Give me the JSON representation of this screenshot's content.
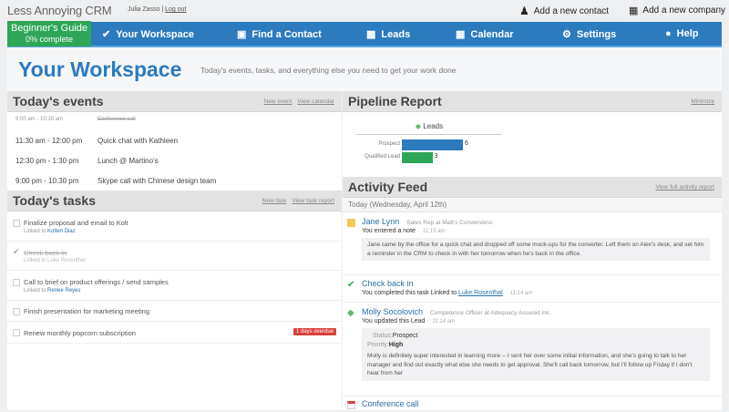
{
  "app": {
    "logo": "Less Annoying CRM",
    "user": "Julia Zasso",
    "logout": "Log out",
    "add_contact": "Add a new contact",
    "add_company": "Add a new company"
  },
  "nav": {
    "guide_title": "Beginner's Guide",
    "guide_progress": "0% complete",
    "items": [
      {
        "label": "Your Workspace",
        "icon": "check-badge-icon"
      },
      {
        "label": "Find a Contact",
        "icon": "contact-card-icon"
      },
      {
        "label": "Leads",
        "icon": "bar-chart-icon"
      },
      {
        "label": "Calendar",
        "icon": "calendar-icon"
      },
      {
        "label": "Settings",
        "icon": "gear-icon"
      },
      {
        "label": "Help",
        "icon": "speech-bubble-icon"
      }
    ]
  },
  "header": {
    "title": "Your Workspace",
    "subtitle": "Today's events, tasks, and everything else you need to get your work done"
  },
  "events": {
    "title": "Today's events",
    "new": "New event",
    "view": "View calendar",
    "items": [
      {
        "time": "9:00 am - 10:30 am",
        "name": "Conference call",
        "done": true
      },
      {
        "time": "11:30 am - 12:00 pm",
        "name": "Quick chat with Kathleen"
      },
      {
        "time": "12:30 pm - 1:30 pm",
        "name": "Lunch @ Martino's"
      },
      {
        "time": "9:00 pm - 10:30 pm",
        "name": "Skype call with Chinese design team"
      }
    ]
  },
  "tasks": {
    "title": "Today's tasks",
    "new": "New task",
    "view": "View task report",
    "linked_prefix": "Linked to",
    "items": [
      {
        "name": "Finalize proposal and email to Kolt",
        "linked": "Kolten Diaz"
      },
      {
        "name": "Check back in",
        "linked": "Luke Rosenthal",
        "done": true
      },
      {
        "name": "Call to brief on product offerings / send samples",
        "linked": "Renee Reyes"
      },
      {
        "name": "Finish presentation for marketing meeting"
      },
      {
        "name": "Renew monthly popcorn subscription",
        "badge": "1 days overdue"
      }
    ]
  },
  "pipeline": {
    "title": "Pipeline Report",
    "minimize": "Minimize",
    "chart_title": "Leads",
    "bars": [
      {
        "label": "Prospect",
        "value": 6,
        "color": "#2c7bbf"
      },
      {
        "label": "Qualified Lead",
        "value": 3,
        "color": "#2ea657"
      }
    ]
  },
  "activity": {
    "title": "Activity Feed",
    "view": "View full activity report",
    "date": "Today (Wednesday, April 12th)",
    "items": [
      {
        "name": "Jane Lynn",
        "role": "Sales Rep at Matt's Conversions",
        "desc": "You entered a note",
        "time": "11:15 am",
        "note": "Jane came by the office for a quick chat and dropped off some mock-ups for the converter. Left them on Alex's desk, and set him a reminder in the CRM to check in with her tomorrow when he's back in the office."
      },
      {
        "name": "Check back in",
        "desc": "You completed this task Linked to",
        "link": "Luke Rosenthal",
        "time": "11:14 am"
      },
      {
        "name": "Molly Socolovich",
        "role": "Competence Officer at Adequacy Assured Inc.",
        "desc": "You updated this Lead",
        "time": "11:14 am",
        "status_label": "Status:",
        "status": "Prospect",
        "priority_label": "Priority:",
        "priority": "High",
        "note": "Molly is definitely super interested in learning more -- I sent her over some initial information, and she's going to talk to her manager and find out exactly what else she needs to get approval. She'll call back tomorrow, but I'll follow up Friday if I don't hear from her"
      },
      {
        "name": "Conference call"
      }
    ]
  }
}
